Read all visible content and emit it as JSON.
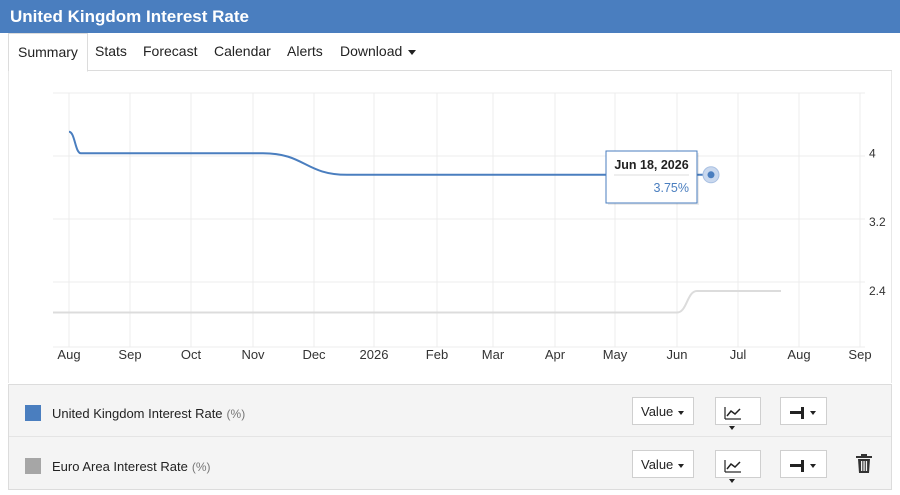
{
  "header": {
    "title": "United Kingdom Interest Rate"
  },
  "tabs": [
    {
      "label": "Summary"
    },
    {
      "label": "Stats"
    },
    {
      "label": "Forecast"
    },
    {
      "label": "Calendar"
    },
    {
      "label": "Alerts"
    },
    {
      "label": "Download"
    }
  ],
  "tooltip": {
    "date": "Jun 18, 2026",
    "value": "3.75%"
  },
  "colors": {
    "header": "#4a7ebf",
    "uk_series": "#4a7ebf",
    "euro_series": "#a6a6a6"
  },
  "chart_data": {
    "type": "line",
    "xlabel": "",
    "ylabel": "",
    "x_ticks": [
      "Aug",
      "Sep",
      "Oct",
      "Nov",
      "Dec",
      "2026",
      "Feb",
      "Mar",
      "Apr",
      "May",
      "Jun",
      "Jul",
      "Aug",
      "Sep"
    ],
    "y_ticks": [
      4,
      3.2,
      2.4
    ],
    "ylim": [
      1.75,
      4.7
    ],
    "y_axis_position": "right",
    "grid": true,
    "series": [
      {
        "name": "United Kingdom Interest Rate",
        "unit": "(%)",
        "points": [
          [
            "2025-08-01",
            4.25
          ],
          [
            "2025-08-07",
            4.0
          ],
          [
            "2025-11-06",
            4.0
          ],
          [
            "2025-12-18",
            3.75
          ],
          [
            "2026-06-18",
            3.75
          ]
        ]
      },
      {
        "name": "Euro Area Interest Rate",
        "unit": "(%)",
        "points": [
          [
            "2025-07-01",
            2.15
          ],
          [
            "2026-06-01",
            2.15
          ],
          [
            "2026-06-11",
            2.4
          ],
          [
            "2026-07-23",
            2.4
          ]
        ]
      }
    ]
  },
  "legend": {
    "rows": [
      {
        "name": "United Kingdom Interest Rate",
        "unit": "(%)",
        "value_label": "Value"
      },
      {
        "name": "Euro Area Interest Rate",
        "unit": "(%)",
        "value_label": "Value"
      }
    ]
  }
}
